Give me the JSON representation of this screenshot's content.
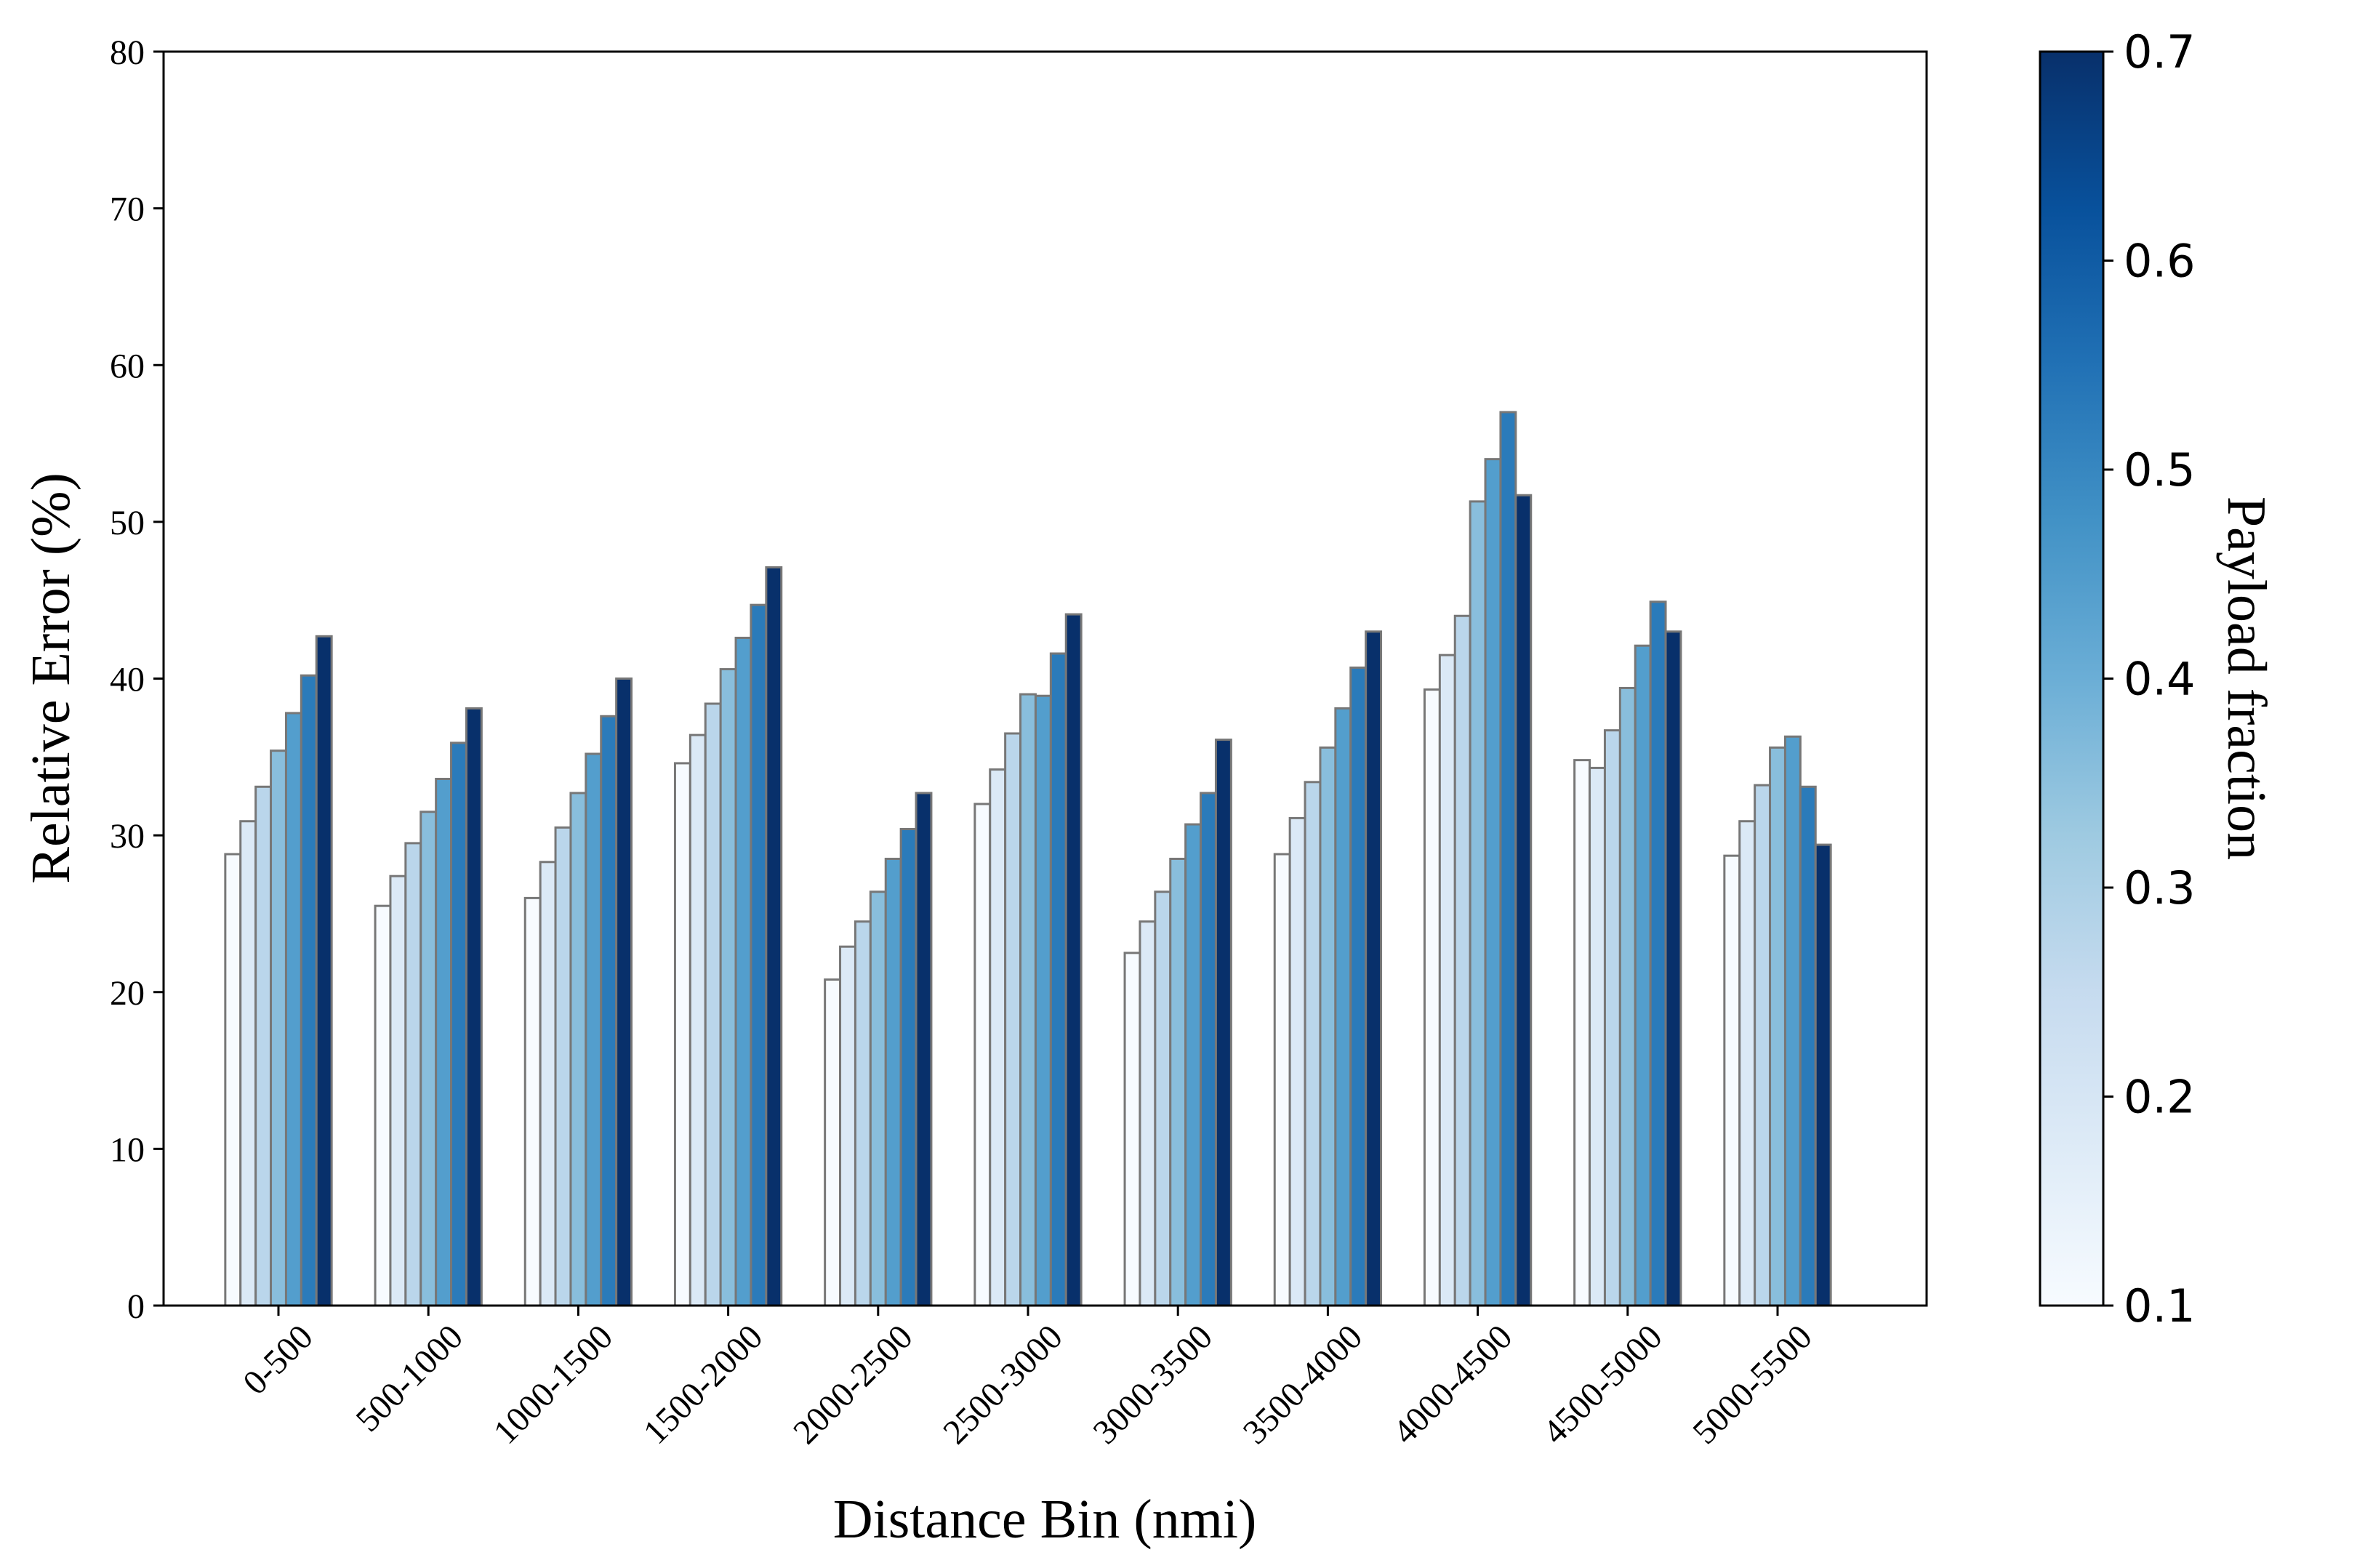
{
  "chart_data": {
    "type": "bar",
    "xlabel": "Distance Bin (nmi)",
    "ylabel": "Relative Error (%)",
    "ylim": [
      0,
      80
    ],
    "yticks": [
      0,
      10,
      20,
      30,
      40,
      50,
      60,
      70,
      80
    ],
    "categories": [
      "0-500",
      "500-1000",
      "1000-1500",
      "1500-2000",
      "2000-2500",
      "2500-3000",
      "3000-3500",
      "3500-4000",
      "4000-4500",
      "4500-5000",
      "5000-5500"
    ],
    "series": [
      {
        "payload_fraction": 0.1,
        "color": "#f7fbff",
        "values": [
          28.8,
          25.5,
          26.0,
          34.6,
          20.8,
          32.0,
          22.5,
          28.8,
          39.3,
          34.8,
          28.7
        ]
      },
      {
        "payload_fraction": 0.2,
        "color": "#dbe9f6",
        "values": [
          30.9,
          27.4,
          28.3,
          36.4,
          22.9,
          34.2,
          24.5,
          31.1,
          41.5,
          34.3,
          30.9
        ]
      },
      {
        "payload_fraction": 0.3,
        "color": "#bad6eb",
        "values": [
          33.1,
          29.5,
          30.5,
          38.4,
          24.5,
          36.5,
          26.4,
          33.4,
          44.0,
          36.7,
          33.2
        ]
      },
      {
        "payload_fraction": 0.4,
        "color": "#89bedc",
        "values": [
          35.4,
          31.5,
          32.7,
          40.6,
          26.4,
          39.0,
          28.5,
          35.6,
          51.3,
          39.4,
          35.6
        ]
      },
      {
        "payload_fraction": 0.5,
        "color": "#539ecd",
        "values": [
          37.8,
          33.6,
          35.2,
          42.6,
          28.5,
          38.9,
          30.7,
          38.1,
          54.0,
          42.1,
          36.3
        ]
      },
      {
        "payload_fraction": 0.6,
        "color": "#2b7bba",
        "values": [
          40.2,
          35.9,
          37.6,
          44.7,
          30.4,
          41.6,
          32.7,
          40.7,
          57.0,
          44.9,
          33.1
        ]
      },
      {
        "payload_fraction": 0.7,
        "color": "#08306b",
        "values": [
          42.7,
          38.1,
          40.0,
          47.1,
          32.7,
          44.1,
          36.1,
          43.0,
          51.7,
          43.0,
          29.4
        ]
      }
    ],
    "colorbar": {
      "label": "Payload fraction",
      "range": [
        0.1,
        0.7
      ],
      "ticks": [
        0.1,
        0.2,
        0.3,
        0.4,
        0.5,
        0.6,
        0.7
      ],
      "tick_labels": [
        "0.1",
        "0.2",
        "0.3",
        "0.4",
        "0.5",
        "0.6",
        "0.7"
      ],
      "colors": [
        "#f7fbff",
        "#deebf7",
        "#c6dbef",
        "#9ecae1",
        "#6baed6",
        "#4292c6",
        "#2171b5",
        "#08519c",
        "#08306b"
      ]
    },
    "grid": false,
    "legend": "none"
  }
}
